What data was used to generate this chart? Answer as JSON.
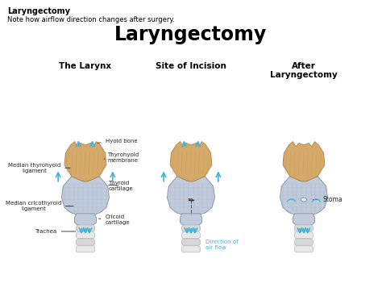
{
  "bg_color": "#ffffff",
  "top_title": "Laryngectomy",
  "top_subtitle": "Note how airflow direction changes after surgery.",
  "main_title": "Laryngectomy",
  "panel_titles": [
    "The Larynx",
    "Site of Incision",
    "After\nLaryngectomy"
  ],
  "left_labels": [
    "Median thyrohyoid\nligament",
    "Median cricothyroid\nligament",
    "Trachea"
  ],
  "right_labels_larynx": [
    "Hyoid bone",
    "Thyrohyoid\nmembrane",
    "Thyroid\ncartilage",
    "Cricoid\ncartilage"
  ],
  "right_label_after": "Stoma",
  "airflow_label": "Direction of\nair flow",
  "tan": "#D4A96A",
  "tan_dark": "#B8884A",
  "tan_mid": "#C89A5A",
  "blue_gray": "#C0CCDC",
  "blue_gray_dark": "#8899AA",
  "gray_light": "#D8D8D8",
  "gray_mid": "#B8B8B8",
  "cyan": "#40B4D8",
  "label_color": "#222222",
  "figsize": [
    4.74,
    3.72
  ],
  "dpi": 100
}
